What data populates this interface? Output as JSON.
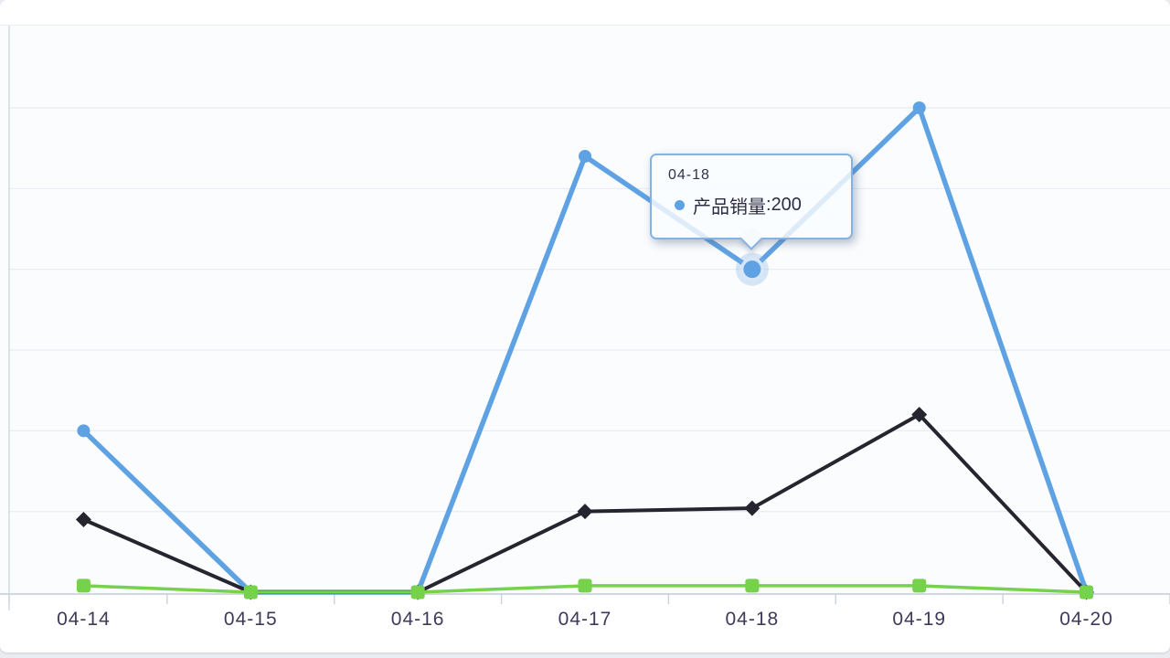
{
  "page": {
    "background": "#e9edf1",
    "card_background": "#ffffff",
    "plot_background": "#fafcfe"
  },
  "axis": {
    "x_labels": [
      "04-14",
      "04-15",
      "04-16",
      "04-17",
      "04-18",
      "04-19",
      "04-20"
    ],
    "label_color": "#3f3a5c",
    "axis_line_color": "#c9d3de",
    "gridline_color": "#e6ecf3"
  },
  "chart_data": {
    "type": "line",
    "title": "",
    "xlabel": "",
    "ylabel": "",
    "categories": [
      "04-14",
      "04-15",
      "04-16",
      "04-17",
      "04-18",
      "04-19",
      "04-20"
    ],
    "series": [
      {
        "name": "产品销量",
        "color": "#5fa2e4",
        "marker": "circle",
        "line_width": 5.5,
        "values": [
          100,
          0,
          0,
          270,
          200,
          300,
          0
        ]
      },
      {
        "name": "",
        "color": "#26242f",
        "marker": "diamond",
        "line_width": 4,
        "values": [
          45,
          0,
          0,
          50,
          52,
          110,
          0
        ]
      },
      {
        "name": "",
        "color": "#76d24a",
        "marker": "square",
        "line_width": 3.5,
        "values": [
          4,
          0,
          0,
          4,
          4,
          4,
          0
        ]
      }
    ],
    "ylim": [
      0,
      300
    ],
    "gridline_step": 50,
    "grid": "horizontal gridlines only, no y-axis tick labels",
    "legend": "none",
    "highlighted_point": {
      "series": "产品销量",
      "category": "04-18",
      "value": 200
    }
  },
  "tooltip": {
    "date": "04-18",
    "series": "产品销量",
    "separator": ": ",
    "value": "200",
    "border_color": "#85b2e0",
    "dot_color": "#5fa2e4"
  }
}
